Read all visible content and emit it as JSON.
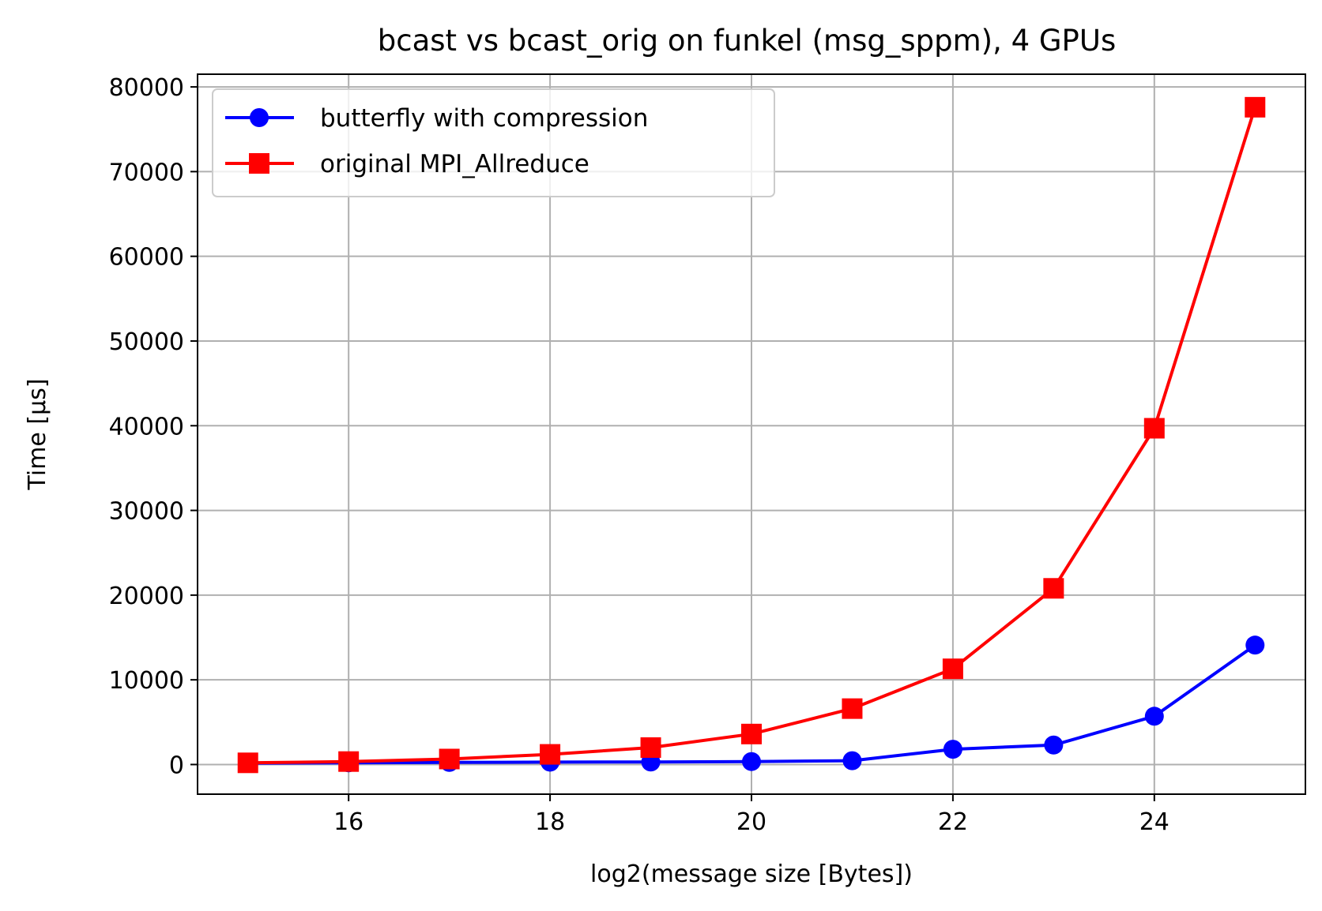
{
  "chart_data": {
    "type": "line",
    "title": "bcast vs bcast_orig on funkel (msg_sppm), 4 GPUs",
    "xlabel": "log2(message size [Bytes])",
    "ylabel": "Time [µs]",
    "xlim": [
      14.5,
      25.5
    ],
    "ylim": [
      -3500,
      81500
    ],
    "x_ticks": [
      16,
      18,
      20,
      22,
      24
    ],
    "y_ticks": [
      0,
      10000,
      20000,
      30000,
      40000,
      50000,
      60000,
      70000,
      80000
    ],
    "grid": true,
    "legend_position": "top-left",
    "x": [
      15,
      16,
      17,
      18,
      19,
      20,
      21,
      22,
      23,
      24,
      25
    ],
    "series": [
      {
        "name": "butterfly with compression",
        "color": "#0000ff",
        "marker": "circle",
        "values": [
          150,
          200,
          250,
          280,
          300,
          350,
          450,
          1800,
          2300,
          5700,
          14100
        ]
      },
      {
        "name": "original MPI_Allreduce",
        "color": "#ff0000",
        "marker": "square",
        "values": [
          200,
          350,
          650,
          1200,
          2000,
          3600,
          6600,
          11300,
          20800,
          39700,
          77600
        ]
      }
    ]
  }
}
